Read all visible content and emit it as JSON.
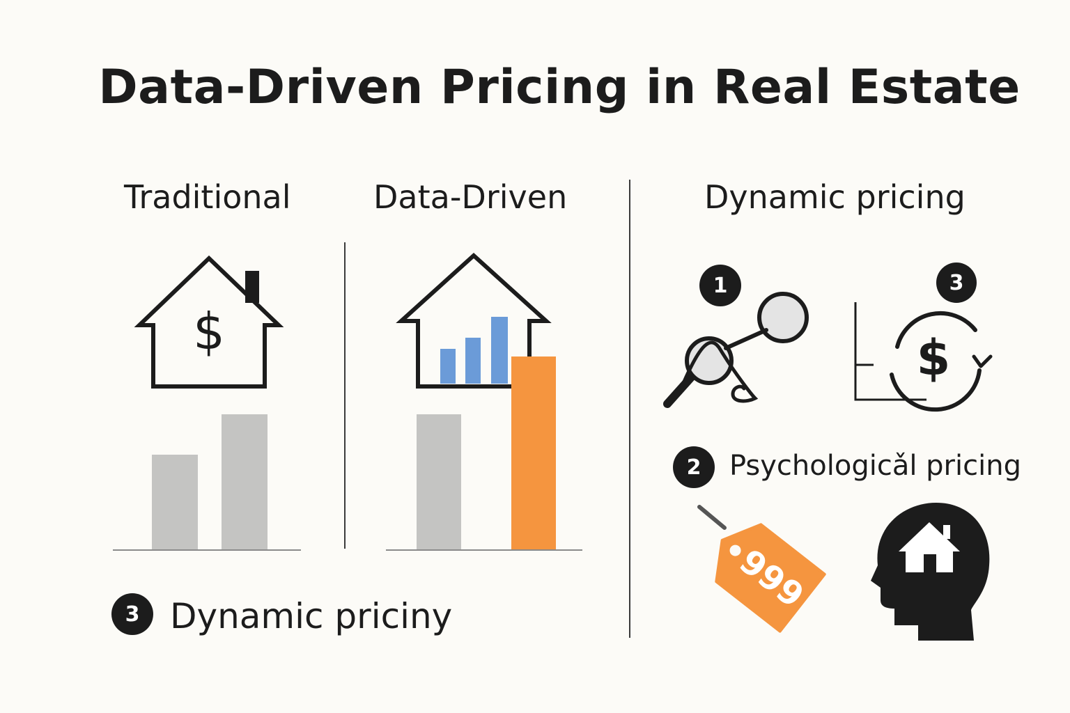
{
  "title": "Data-Driven Pricing in Real Estate",
  "columns": {
    "traditional": "Traditional",
    "data_driven": "Data-Driven",
    "dynamic": "Dynamic pricing"
  },
  "left_footer": {
    "badge": "3",
    "label": "Dynamic priciny"
  },
  "right_panel": {
    "badge_1": "1",
    "badge_2": "2",
    "badge_3": "3",
    "psychological_label": "Psychologicǎl pricing",
    "price_tag_text": "999"
  },
  "colors": {
    "background": "#fcfbf7",
    "ink": "#1c1c1c",
    "gray_bar": "#c4c4c2",
    "blue_bar": "#6b9bd8",
    "orange": "#f5953f"
  },
  "icons": [
    "house-dollar-icon",
    "house-chart-icon",
    "magnifier-trend-icon",
    "dollar-cycle-icon",
    "price-tag-icon",
    "head-house-icon"
  ]
}
